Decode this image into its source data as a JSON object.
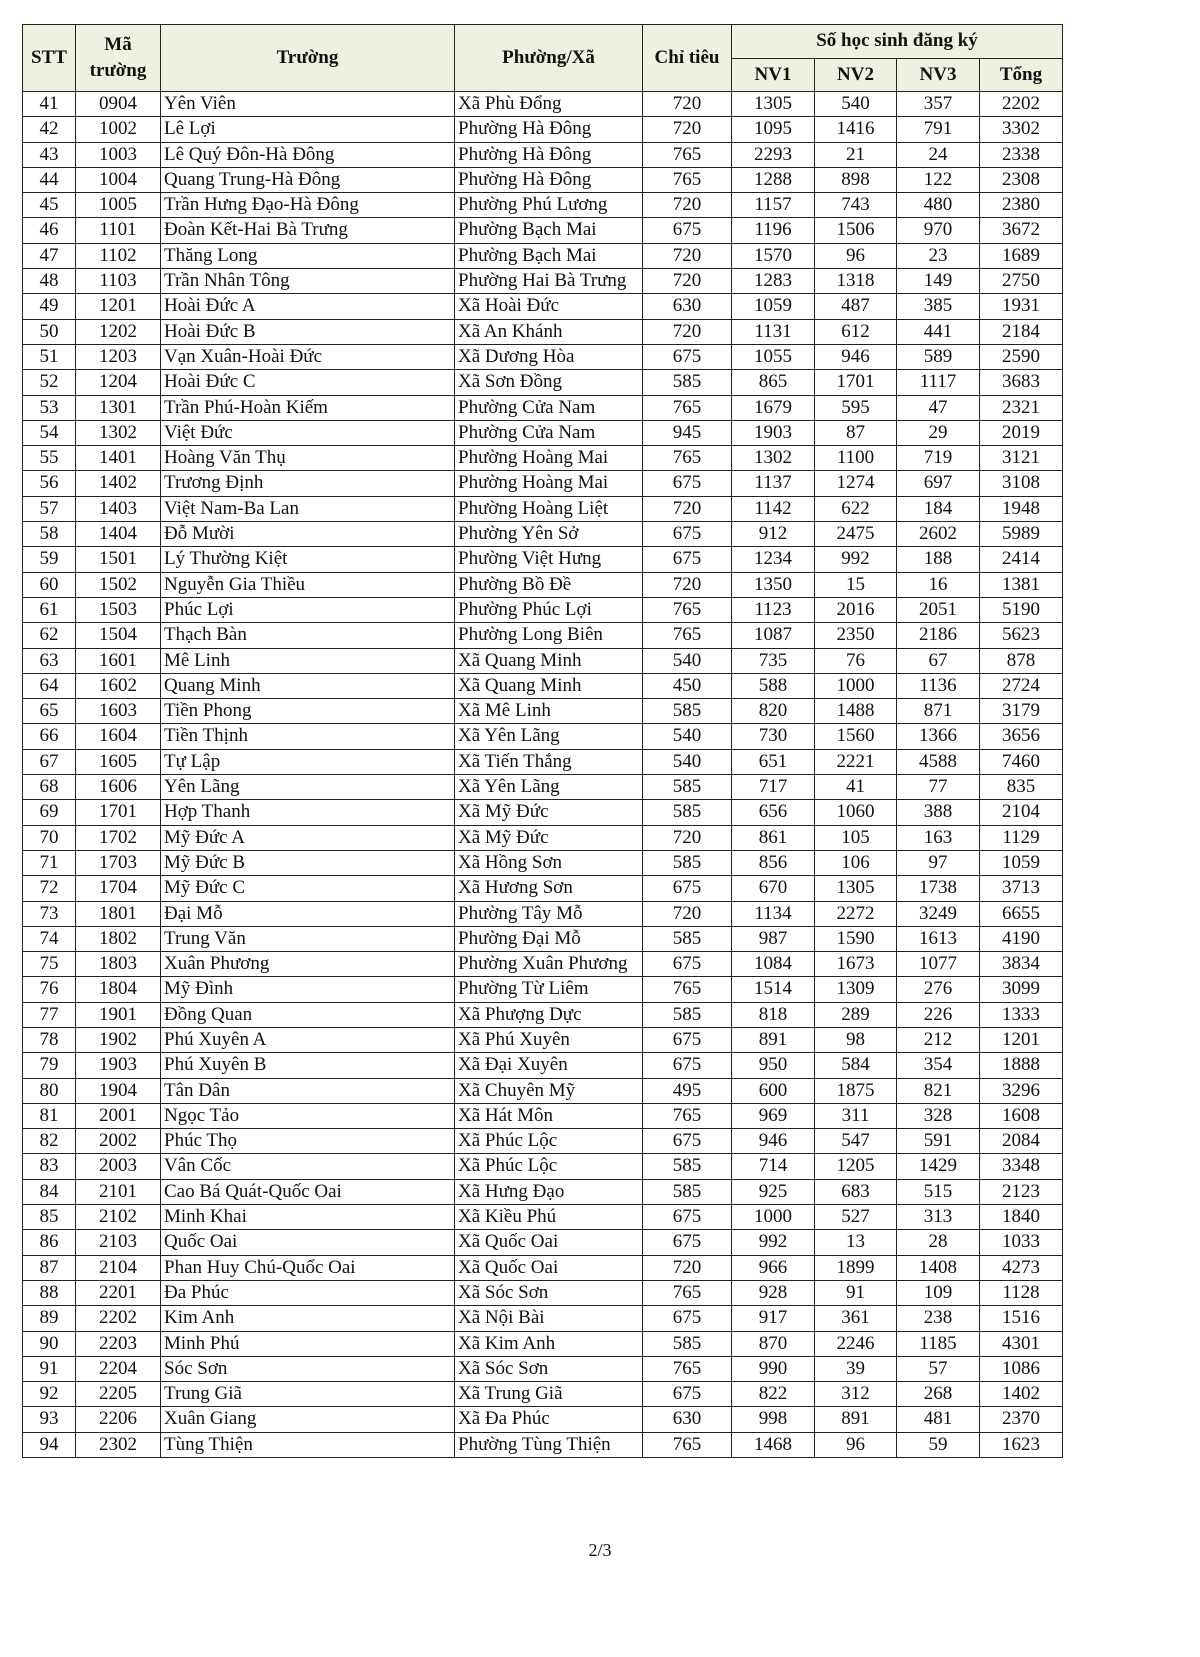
{
  "header": {
    "stt": "STT",
    "ma_truong": "Mã trường",
    "truong": "Trường",
    "phuong_xa": "Phường/Xã",
    "chi_tieu": "Chỉ tiêu",
    "group": "Số học sinh đăng ký",
    "nv1": "NV1",
    "nv2": "NV2",
    "nv3": "NV3",
    "tong": "Tổng"
  },
  "rows": [
    [
      "41",
      "0904",
      "Yên Viên",
      "Xã Phù Đổng",
      "720",
      "1305",
      "540",
      "357",
      "2202"
    ],
    [
      "42",
      "1002",
      "Lê Lợi",
      "Phường Hà Đông",
      "720",
      "1095",
      "1416",
      "791",
      "3302"
    ],
    [
      "43",
      "1003",
      "Lê Quý Đôn-Hà Đông",
      "Phường Hà Đông",
      "765",
      "2293",
      "21",
      "24",
      "2338"
    ],
    [
      "44",
      "1004",
      "Quang Trung-Hà Đông",
      "Phường Hà Đông",
      "765",
      "1288",
      "898",
      "122",
      "2308"
    ],
    [
      "45",
      "1005",
      "Trần Hưng Đạo-Hà Đông",
      "Phường Phú Lương",
      "720",
      "1157",
      "743",
      "480",
      "2380"
    ],
    [
      "46",
      "1101",
      "Đoàn Kết-Hai Bà Trưng",
      "Phường Bạch Mai",
      "675",
      "1196",
      "1506",
      "970",
      "3672"
    ],
    [
      "47",
      "1102",
      "Thăng Long",
      "Phường Bạch Mai",
      "720",
      "1570",
      "96",
      "23",
      "1689"
    ],
    [
      "48",
      "1103",
      "Trần Nhân Tông",
      "Phường Hai Bà Trưng",
      "720",
      "1283",
      "1318",
      "149",
      "2750"
    ],
    [
      "49",
      "1201",
      "Hoài Đức A",
      "Xã Hoài Đức",
      "630",
      "1059",
      "487",
      "385",
      "1931"
    ],
    [
      "50",
      "1202",
      "Hoài Đức B",
      "Xã An Khánh",
      "720",
      "1131",
      "612",
      "441",
      "2184"
    ],
    [
      "51",
      "1203",
      "Vạn Xuân-Hoài Đức",
      "Xã Dương Hòa",
      "675",
      "1055",
      "946",
      "589",
      "2590"
    ],
    [
      "52",
      "1204",
      "Hoài Đức C",
      "Xã Sơn Đồng",
      "585",
      "865",
      "1701",
      "1117",
      "3683"
    ],
    [
      "53",
      "1301",
      "Trần Phú-Hoàn Kiếm",
      "Phường Cửa Nam",
      "765",
      "1679",
      "595",
      "47",
      "2321"
    ],
    [
      "54",
      "1302",
      "Việt Đức",
      "Phường Cửa Nam",
      "945",
      "1903",
      "87",
      "29",
      "2019"
    ],
    [
      "55",
      "1401",
      "Hoàng Văn Thụ",
      "Phường Hoàng Mai",
      "765",
      "1302",
      "1100",
      "719",
      "3121"
    ],
    [
      "56",
      "1402",
      "Trương Định",
      "Phường Hoàng Mai",
      "675",
      "1137",
      "1274",
      "697",
      "3108"
    ],
    [
      "57",
      "1403",
      "Việt Nam-Ba Lan",
      "Phường Hoàng Liệt",
      "720",
      "1142",
      "622",
      "184",
      "1948"
    ],
    [
      "58",
      "1404",
      "Đỗ Mười",
      "Phường Yên Sở",
      "675",
      "912",
      "2475",
      "2602",
      "5989"
    ],
    [
      "59",
      "1501",
      "Lý Thường Kiệt",
      "Phường Việt Hưng",
      "675",
      "1234",
      "992",
      "188",
      "2414"
    ],
    [
      "60",
      "1502",
      "Nguyễn Gia Thiều",
      "Phường Bồ Đề",
      "720",
      "1350",
      "15",
      "16",
      "1381"
    ],
    [
      "61",
      "1503",
      "Phúc Lợi",
      "Phường Phúc Lợi",
      "765",
      "1123",
      "2016",
      "2051",
      "5190"
    ],
    [
      "62",
      "1504",
      "Thạch Bàn",
      "Phường Long Biên",
      "765",
      "1087",
      "2350",
      "2186",
      "5623"
    ],
    [
      "63",
      "1601",
      "Mê Linh",
      "Xã Quang Minh",
      "540",
      "735",
      "76",
      "67",
      "878"
    ],
    [
      "64",
      "1602",
      "Quang Minh",
      "Xã Quang Minh",
      "450",
      "588",
      "1000",
      "1136",
      "2724"
    ],
    [
      "65",
      "1603",
      "Tiền Phong",
      "Xã Mê Linh",
      "585",
      "820",
      "1488",
      "871",
      "3179"
    ],
    [
      "66",
      "1604",
      "Tiền Thịnh",
      "Xã Yên Lãng",
      "540",
      "730",
      "1560",
      "1366",
      "3656"
    ],
    [
      "67",
      "1605",
      "Tự Lập",
      "Xã Tiến Thắng",
      "540",
      "651",
      "2221",
      "4588",
      "7460"
    ],
    [
      "68",
      "1606",
      "Yên Lãng",
      "Xã Yên Lãng",
      "585",
      "717",
      "41",
      "77",
      "835"
    ],
    [
      "69",
      "1701",
      "Hợp Thanh",
      "Xã Mỹ Đức",
      "585",
      "656",
      "1060",
      "388",
      "2104"
    ],
    [
      "70",
      "1702",
      "Mỹ Đức A",
      "Xã Mỹ Đức",
      "720",
      "861",
      "105",
      "163",
      "1129"
    ],
    [
      "71",
      "1703",
      "Mỹ Đức B",
      "Xã Hồng Sơn",
      "585",
      "856",
      "106",
      "97",
      "1059"
    ],
    [
      "72",
      "1704",
      "Mỹ Đức C",
      "Xã Hương Sơn",
      "675",
      "670",
      "1305",
      "1738",
      "3713"
    ],
    [
      "73",
      "1801",
      "Đại Mỗ",
      "Phường Tây Mỗ",
      "720",
      "1134",
      "2272",
      "3249",
      "6655"
    ],
    [
      "74",
      "1802",
      "Trung Văn",
      "Phường Đại Mỗ",
      "585",
      "987",
      "1590",
      "1613",
      "4190"
    ],
    [
      "75",
      "1803",
      "Xuân Phương",
      "Phường Xuân Phương",
      "675",
      "1084",
      "1673",
      "1077",
      "3834"
    ],
    [
      "76",
      "1804",
      "Mỹ Đình",
      "Phường Từ Liêm",
      "765",
      "1514",
      "1309",
      "276",
      "3099"
    ],
    [
      "77",
      "1901",
      "Đồng Quan",
      "Xã Phượng Dực",
      "585",
      "818",
      "289",
      "226",
      "1333"
    ],
    [
      "78",
      "1902",
      "Phú Xuyên A",
      "Xã Phú Xuyên",
      "675",
      "891",
      "98",
      "212",
      "1201"
    ],
    [
      "79",
      "1903",
      "Phú Xuyên B",
      "Xã Đại Xuyên",
      "675",
      "950",
      "584",
      "354",
      "1888"
    ],
    [
      "80",
      "1904",
      "Tân Dân",
      "Xã Chuyên Mỹ",
      "495",
      "600",
      "1875",
      "821",
      "3296"
    ],
    [
      "81",
      "2001",
      "Ngọc Tảo",
      "Xã Hát Môn",
      "765",
      "969",
      "311",
      "328",
      "1608"
    ],
    [
      "82",
      "2002",
      "Phúc Thọ",
      "Xã Phúc Lộc",
      "675",
      "946",
      "547",
      "591",
      "2084"
    ],
    [
      "83",
      "2003",
      "Vân Cốc",
      "Xã Phúc Lộc",
      "585",
      "714",
      "1205",
      "1429",
      "3348"
    ],
    [
      "84",
      "2101",
      "Cao Bá Quát-Quốc Oai",
      "Xã Hưng Đạo",
      "585",
      "925",
      "683",
      "515",
      "2123"
    ],
    [
      "85",
      "2102",
      "Minh Khai",
      "Xã Kiều Phú",
      "675",
      "1000",
      "527",
      "313",
      "1840"
    ],
    [
      "86",
      "2103",
      "Quốc Oai",
      "Xã Quốc Oai",
      "675",
      "992",
      "13",
      "28",
      "1033"
    ],
    [
      "87",
      "2104",
      "Phan Huy Chú-Quốc Oai",
      "Xã Quốc Oai",
      "720",
      "966",
      "1899",
      "1408",
      "4273"
    ],
    [
      "88",
      "2201",
      "Đa Phúc",
      "Xã Sóc Sơn",
      "765",
      "928",
      "91",
      "109",
      "1128"
    ],
    [
      "89",
      "2202",
      "Kim Anh",
      "Xã Nội Bài",
      "675",
      "917",
      "361",
      "238",
      "1516"
    ],
    [
      "90",
      "2203",
      "Minh Phú",
      "Xã Kim Anh",
      "585",
      "870",
      "2246",
      "1185",
      "4301"
    ],
    [
      "91",
      "2204",
      "Sóc Sơn",
      "Xã Sóc Sơn",
      "765",
      "990",
      "39",
      "57",
      "1086"
    ],
    [
      "92",
      "2205",
      "Trung Giã",
      "Xã Trung Giã",
      "675",
      "822",
      "312",
      "268",
      "1402"
    ],
    [
      "93",
      "2206",
      "Xuân Giang",
      "Xã Đa Phúc",
      "630",
      "998",
      "891",
      "481",
      "2370"
    ],
    [
      "94",
      "2302",
      "Tùng Thiện",
      "Phường Tùng Thiện",
      "765",
      "1468",
      "96",
      "59",
      "1623"
    ]
  ],
  "page_number": "2/3"
}
